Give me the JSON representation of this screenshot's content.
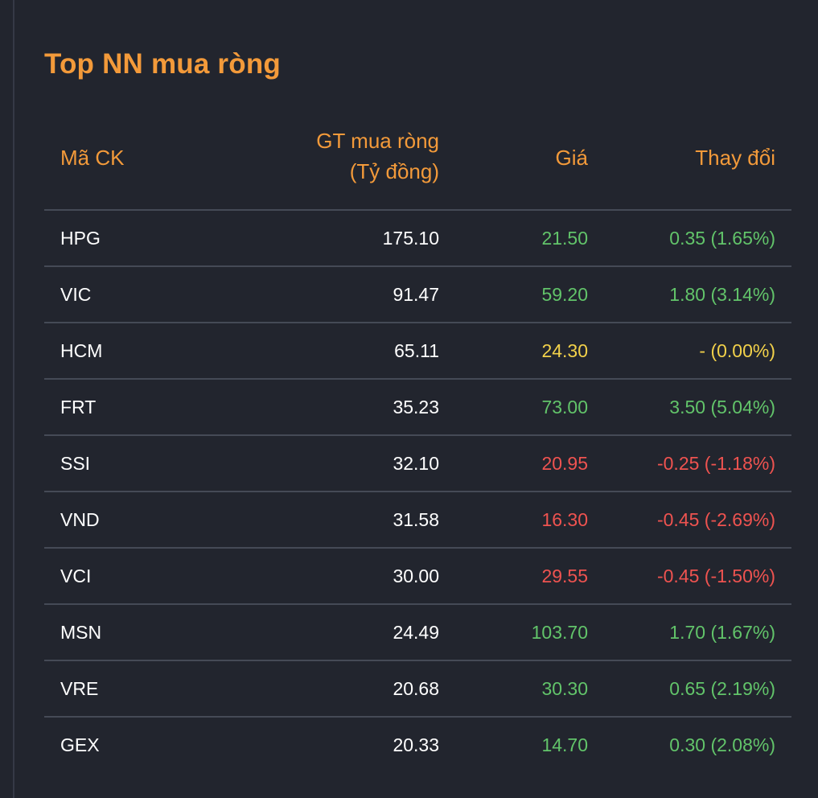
{
  "title": "Top NN mua ròng",
  "columns": {
    "code": "Mã CK",
    "value_line1": "GT mua ròng",
    "value_line2": "(Tỷ đồng)",
    "price": "Giá",
    "change": "Thay đổi"
  },
  "colors": {
    "accent": "#f39a3a",
    "up": "#62c46a",
    "down": "#ef5350",
    "reference": "#f2d14a",
    "background": "#22252e"
  },
  "rows": [
    {
      "code": "HPG",
      "value": "175.10",
      "price": "21.50",
      "change": "0.35 (1.65%)",
      "trend": "up"
    },
    {
      "code": "VIC",
      "value": "91.47",
      "price": "59.20",
      "change": "1.80 (3.14%)",
      "trend": "up"
    },
    {
      "code": "HCM",
      "value": "65.11",
      "price": "24.30",
      "change": "- (0.00%)",
      "trend": "ref"
    },
    {
      "code": "FRT",
      "value": "35.23",
      "price": "73.00",
      "change": "3.50 (5.04%)",
      "trend": "up"
    },
    {
      "code": "SSI",
      "value": "32.10",
      "price": "20.95",
      "change": "-0.25 (-1.18%)",
      "trend": "down"
    },
    {
      "code": "VND",
      "value": "31.58",
      "price": "16.30",
      "change": "-0.45 (-2.69%)",
      "trend": "down"
    },
    {
      "code": "VCI",
      "value": "30.00",
      "price": "29.55",
      "change": "-0.45 (-1.50%)",
      "trend": "down"
    },
    {
      "code": "MSN",
      "value": "24.49",
      "price": "103.70",
      "change": "1.70 (1.67%)",
      "trend": "up"
    },
    {
      "code": "VRE",
      "value": "20.68",
      "price": "30.30",
      "change": "0.65 (2.19%)",
      "trend": "up"
    },
    {
      "code": "GEX",
      "value": "20.33",
      "price": "14.70",
      "change": "0.30 (2.08%)",
      "trend": "up"
    }
  ]
}
